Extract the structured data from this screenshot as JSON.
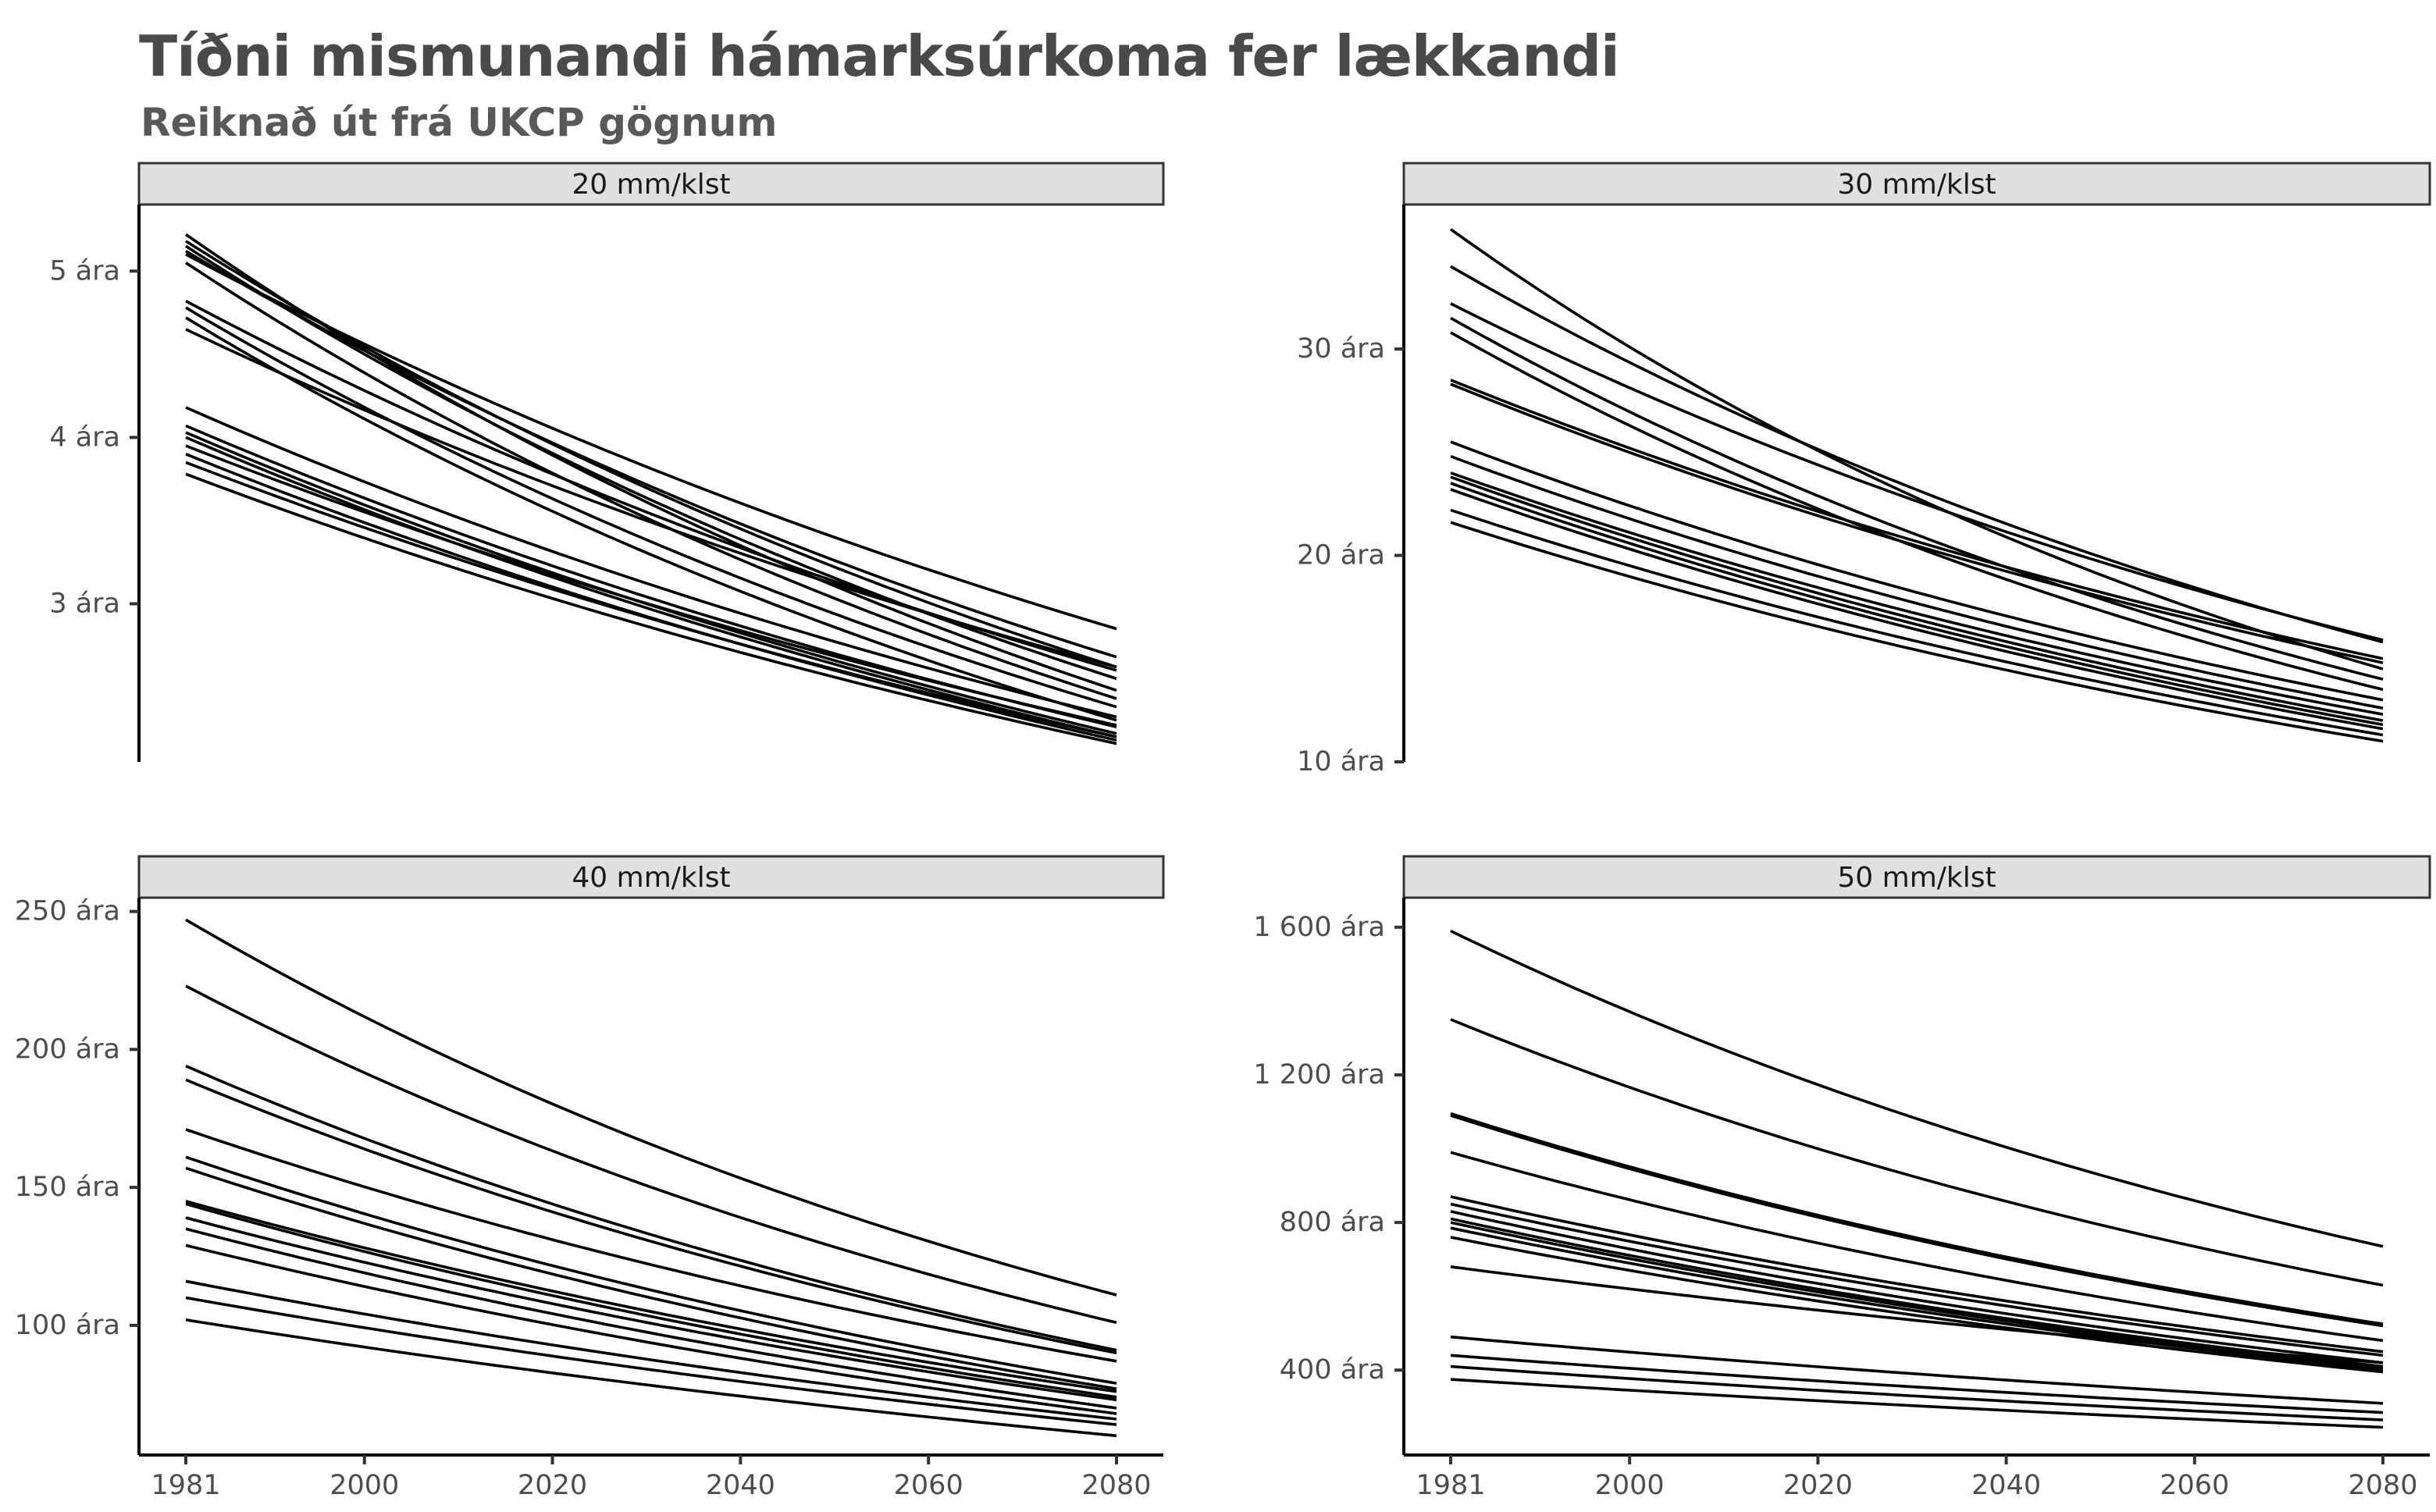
{
  "title": "Tíðni mismunandi hámarksúrkoma fer lækkandi",
  "subtitle": "Reiknað út frá UKCP gögnum",
  "chart_data": [
    {
      "type": "line",
      "panel": "20 mm/klst",
      "xlim": [
        1981,
        2080
      ],
      "ylim": [
        2.05,
        5.4
      ],
      "x_ticks": [
        1981,
        2000,
        2020,
        2040,
        2060,
        2080
      ],
      "x_tick_labels": [
        "1981",
        "2000",
        "2020",
        "2040",
        "2060",
        "2080"
      ],
      "y_ticks": [
        3,
        4,
        5
      ],
      "y_tick_labels": [
        "3 ára",
        "4 ára",
        "5 ára"
      ],
      "series": [
        {
          "start": 5.22,
          "end": 2.48
        },
        {
          "start": 5.18,
          "end": 2.62
        },
        {
          "start": 5.15,
          "end": 2.55
        },
        {
          "start": 5.12,
          "end": 2.68
        },
        {
          "start": 5.1,
          "end": 2.85
        },
        {
          "start": 5.05,
          "end": 2.43
        },
        {
          "start": 4.82,
          "end": 2.6
        },
        {
          "start": 4.78,
          "end": 2.38
        },
        {
          "start": 4.72,
          "end": 2.3
        },
        {
          "start": 4.65,
          "end": 2.62
        },
        {
          "start": 4.18,
          "end": 2.32
        },
        {
          "start": 4.07,
          "end": 2.26
        },
        {
          "start": 4.03,
          "end": 2.22
        },
        {
          "start": 4.0,
          "end": 2.2
        },
        {
          "start": 3.95,
          "end": 2.27
        },
        {
          "start": 3.9,
          "end": 2.18
        },
        {
          "start": 3.85,
          "end": 2.2
        },
        {
          "start": 3.78,
          "end": 2.16
        }
      ]
    },
    {
      "type": "line",
      "panel": "30 mm/klst",
      "xlim": [
        1981,
        2080
      ],
      "ylim": [
        10,
        37
      ],
      "x_ticks": [
        1981,
        2000,
        2020,
        2040,
        2060,
        2080
      ],
      "x_tick_labels": [
        "1981",
        "2000",
        "2020",
        "2040",
        "2060",
        "2080"
      ],
      "y_ticks": [
        10,
        20,
        30
      ],
      "y_tick_labels": [
        "10 ára",
        "20 ára",
        "30 ára"
      ],
      "series": [
        {
          "start": 35.8,
          "end": 14.5
        },
        {
          "start": 34.0,
          "end": 15.8
        },
        {
          "start": 32.2,
          "end": 15.9
        },
        {
          "start": 31.5,
          "end": 14.0
        },
        {
          "start": 30.8,
          "end": 13.5
        },
        {
          "start": 28.5,
          "end": 15.0
        },
        {
          "start": 28.3,
          "end": 14.8
        },
        {
          "start": 25.5,
          "end": 13.0
        },
        {
          "start": 24.8,
          "end": 12.6
        },
        {
          "start": 24.0,
          "end": 12.3
        },
        {
          "start": 23.8,
          "end": 12.0
        },
        {
          "start": 23.5,
          "end": 11.8
        },
        {
          "start": 23.2,
          "end": 11.6
        },
        {
          "start": 22.2,
          "end": 11.3
        },
        {
          "start": 21.6,
          "end": 11.0
        }
      ]
    },
    {
      "type": "line",
      "panel": "40 mm/klst",
      "xlim": [
        1981,
        2080
      ],
      "ylim": [
        53,
        255
      ],
      "x_ticks": [
        1981,
        2000,
        2020,
        2040,
        2060,
        2080
      ],
      "x_tick_labels": [
        "1981",
        "2000",
        "2020",
        "2040",
        "2060",
        "2080"
      ],
      "y_ticks": [
        100,
        150,
        200,
        250
      ],
      "y_tick_labels": [
        "100 ára",
        "150 ára",
        "200 ára",
        "250 ára"
      ],
      "series": [
        {
          "start": 247,
          "end": 111
        },
        {
          "start": 223,
          "end": 101
        },
        {
          "start": 194,
          "end": 91
        },
        {
          "start": 189,
          "end": 90
        },
        {
          "start": 171,
          "end": 87
        },
        {
          "start": 161,
          "end": 79
        },
        {
          "start": 157,
          "end": 77
        },
        {
          "start": 145,
          "end": 76
        },
        {
          "start": 144,
          "end": 74
        },
        {
          "start": 139,
          "end": 73
        },
        {
          "start": 135,
          "end": 70
        },
        {
          "start": 129,
          "end": 68
        },
        {
          "start": 116,
          "end": 66
        },
        {
          "start": 110,
          "end": 64
        },
        {
          "start": 102,
          "end": 60
        }
      ]
    },
    {
      "type": "line",
      "panel": "50 mm/klst",
      "xlim": [
        1981,
        2080
      ],
      "ylim": [
        170,
        1680
      ],
      "x_ticks": [
        1981,
        2000,
        2020,
        2040,
        2060,
        2080
      ],
      "x_tick_labels": [
        "1981",
        "2000",
        "2020",
        "2040",
        "2060",
        "2080"
      ],
      "y_ticks": [
        400,
        800,
        1200,
        1600
      ],
      "y_tick_labels": [
        "400 ára",
        "800 ára",
        "1 200 ára",
        "1 600 ára"
      ],
      "series": [
        {
          "start": 1590,
          "end": 735
        },
        {
          "start": 1350,
          "end": 630
        },
        {
          "start": 1095,
          "end": 525
        },
        {
          "start": 1090,
          "end": 520
        },
        {
          "start": 990,
          "end": 480
        },
        {
          "start": 870,
          "end": 450
        },
        {
          "start": 850,
          "end": 440
        },
        {
          "start": 830,
          "end": 420
        },
        {
          "start": 810,
          "end": 410
        },
        {
          "start": 800,
          "end": 405
        },
        {
          "start": 785,
          "end": 400
        },
        {
          "start": 760,
          "end": 395
        },
        {
          "start": 680,
          "end": 420
        },
        {
          "start": 490,
          "end": 310
        },
        {
          "start": 440,
          "end": 285
        },
        {
          "start": 410,
          "end": 265
        },
        {
          "start": 375,
          "end": 245
        }
      ]
    }
  ]
}
